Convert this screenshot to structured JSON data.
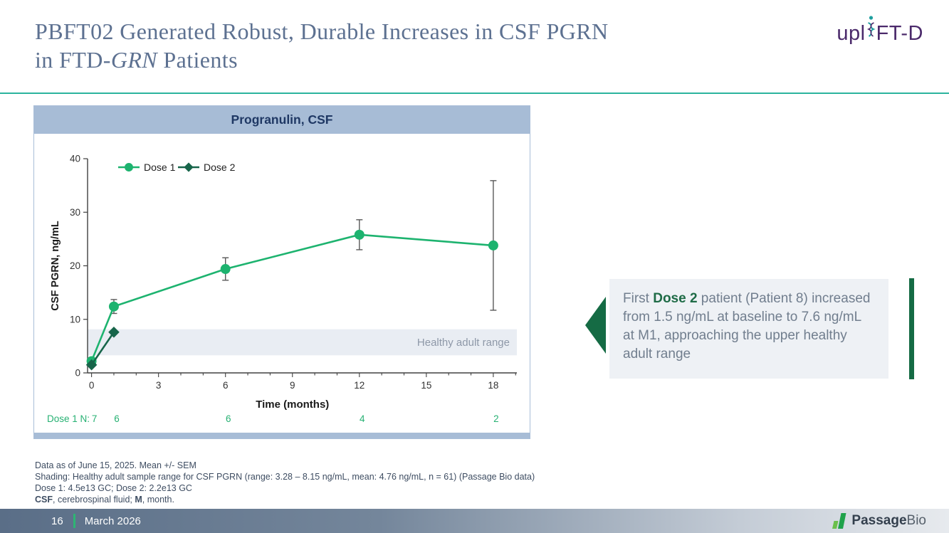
{
  "title": {
    "line1": "PBFT02 Generated Robust, Durable Increases in CSF PGRN",
    "line2_pre": "in FTD-",
    "line2_italic": "GRN",
    "line2_post": " Patients"
  },
  "uplift_logo": {
    "pre": "upl",
    "post": "FT-D"
  },
  "chart_data": {
    "type": "line",
    "title": "Progranulin, CSF",
    "xlabel": "Time (months)",
    "ylabel": "CSF PGRN, ng/mL",
    "xlim": [
      0,
      19
    ],
    "ylim": [
      0,
      40
    ],
    "x_ticks": [
      0,
      3,
      6,
      9,
      12,
      15,
      18
    ],
    "y_ticks": [
      0,
      10,
      20,
      30,
      40
    ],
    "grid": false,
    "legend_position": "top-left",
    "series": [
      {
        "name": "Dose 1",
        "marker": "circle",
        "color": "#1db36f",
        "x": [
          0,
          1,
          6,
          12,
          18
        ],
        "y": [
          2.2,
          12.4,
          19.4,
          25.8,
          23.8
        ],
        "yerr": [
          0,
          1.3,
          2.1,
          2.8,
          12.1
        ]
      },
      {
        "name": "Dose 2",
        "marker": "diamond",
        "color": "#17654a",
        "x": [
          0,
          1
        ],
        "y": [
          1.5,
          7.6
        ],
        "yerr": [
          0,
          0
        ]
      }
    ],
    "shaded_band": {
      "label": "Healthy adult range",
      "y_from": 3.28,
      "y_to": 8.15
    },
    "n_row": {
      "label": "Dose 1 N:",
      "entries": [
        {
          "x": 0,
          "n": "7"
        },
        {
          "x": 1,
          "n": "6"
        },
        {
          "x": 6,
          "n": "6"
        },
        {
          "x": 12,
          "n": "4"
        },
        {
          "x": 18,
          "n": "2"
        }
      ]
    }
  },
  "callout": {
    "pre": "First ",
    "bold": "Dose 2",
    "post": " patient (Patient 8) increased from 1.5 ng/mL at baseline to 7.6 ng/mL at M1, approaching the upper healthy adult range"
  },
  "footnotes": {
    "line1": "Data as of June 15, 2025. Mean +/- SEM",
    "line2": "Shading: Healthy adult sample range for CSF PGRN (range: 3.28 – 8.15 ng/mL, mean: 4.76 ng/mL, n = 61) (Passage Bio data)",
    "line3": "Dose 1: 4.5e13 GC; Dose 2: 2.2e13 GC",
    "line4_b1": "CSF",
    "line4_t1": ", cerebrospinal fluid; ",
    "line4_b2": "M",
    "line4_t2": ", month."
  },
  "footer": {
    "page": "16",
    "date": "March 2026",
    "brand_bold": "Passage",
    "brand_light": "Bio"
  },
  "colors": {
    "dose1_green": "#1db36f",
    "dose2_green": "#17654a",
    "accent_teal": "#2bb49e",
    "panel_header_blue": "#a7bcd6",
    "band_fill": "#e9edf3",
    "callout_green": "#156b44",
    "n_row_green": "#27b173",
    "error_bar": "#595959"
  }
}
